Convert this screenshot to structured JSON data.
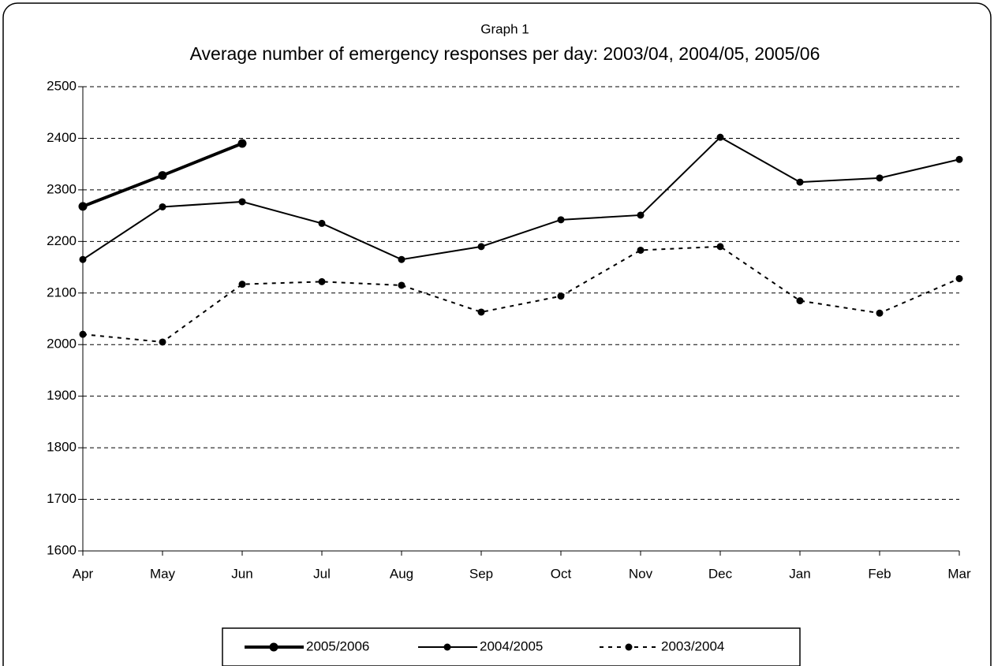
{
  "chart_data": {
    "type": "line",
    "subtitle": "Graph 1",
    "title": "Average number of emergency responses per day: 2003/04, 2004/05,  2005/06",
    "categories": [
      "Apr",
      "May",
      "Jun",
      "Jul",
      "Aug",
      "Sep",
      "Oct",
      "Nov",
      "Dec",
      "Jan",
      "Feb",
      "Mar"
    ],
    "ylim": [
      1600,
      2500
    ],
    "yticks": [
      1600,
      1700,
      1800,
      1900,
      2000,
      2100,
      2200,
      2300,
      2400,
      2500
    ],
    "grid": true,
    "legend": "bottom",
    "series": [
      {
        "name": "2005/2006",
        "color": "#000000",
        "style": "thick",
        "values": [
          2268,
          2328,
          2390,
          null,
          null,
          null,
          null,
          null,
          null,
          null,
          null,
          null
        ]
      },
      {
        "name": "2004/2005",
        "color": "#000000",
        "style": "solid",
        "values": [
          2165,
          2267,
          2277,
          2235,
          2165,
          2190,
          2242,
          2251,
          2402,
          2315,
          2323,
          2359
        ]
      },
      {
        "name": "2003/2004",
        "color": "#000000",
        "style": "dotted",
        "values": [
          2020,
          2005,
          2117,
          2122,
          2115,
          2063,
          2094,
          2183,
          2190,
          2085,
          2061,
          2128
        ]
      }
    ]
  }
}
